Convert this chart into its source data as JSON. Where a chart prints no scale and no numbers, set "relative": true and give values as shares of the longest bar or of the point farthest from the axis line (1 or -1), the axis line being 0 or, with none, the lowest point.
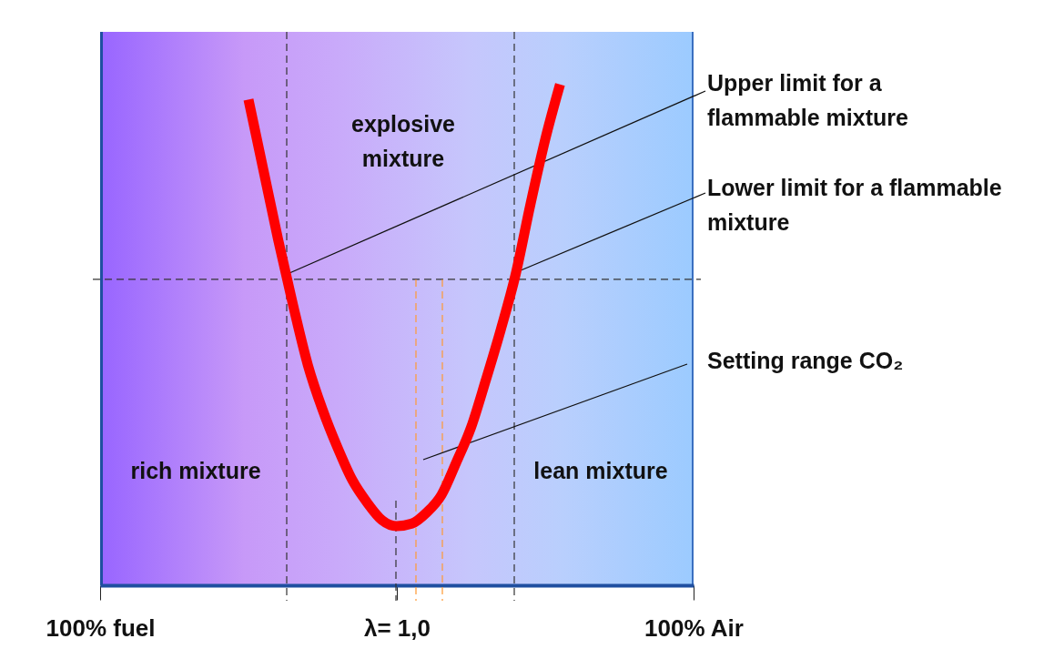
{
  "chart_data": {
    "type": "line",
    "relative": true,
    "line_style": "solid",
    "marker": "none",
    "categories": [
      "100% fuel",
      null,
      null,
      null,
      null,
      null,
      null,
      null,
      null,
      null,
      null,
      null,
      null,
      null,
      null,
      null,
      null,
      null,
      null,
      null,
      "λ= 1,0",
      null,
      null,
      null,
      null,
      null,
      null,
      null,
      null,
      null,
      null,
      null,
      null,
      null,
      null,
      null,
      null,
      null,
      null,
      null,
      "100% Air"
    ],
    "series": [
      {
        "color": "#ff0000",
        "values": [
          null,
          null,
          null,
          null,
          null,
          null,
          null,
          null,
          null,
          null,
          0.97,
          0.83,
          0.69,
          0.56,
          0.44,
          0.35,
          0.275,
          0.21,
          0.165,
          0.13,
          0.118,
          0.123,
          0.145,
          0.18,
          0.245,
          0.315,
          0.41,
          0.51,
          0.62,
          0.76,
          0.89,
          1.0,
          null,
          null,
          null,
          null,
          null,
          null,
          null,
          null,
          null
        ]
      }
    ],
    "ref_lines": [
      {
        "axis": "y",
        "value": 0.611,
        "color": "#333333",
        "line_style": "dashed"
      }
    ],
    "annotations": [
      "explosive\nmixture",
      "Upper limit for a\nflammable mixture",
      "Lower limit for a flammable\nmixture",
      "Setting range CO₂",
      "rich mixture",
      "lean mixture"
    ]
  }
}
